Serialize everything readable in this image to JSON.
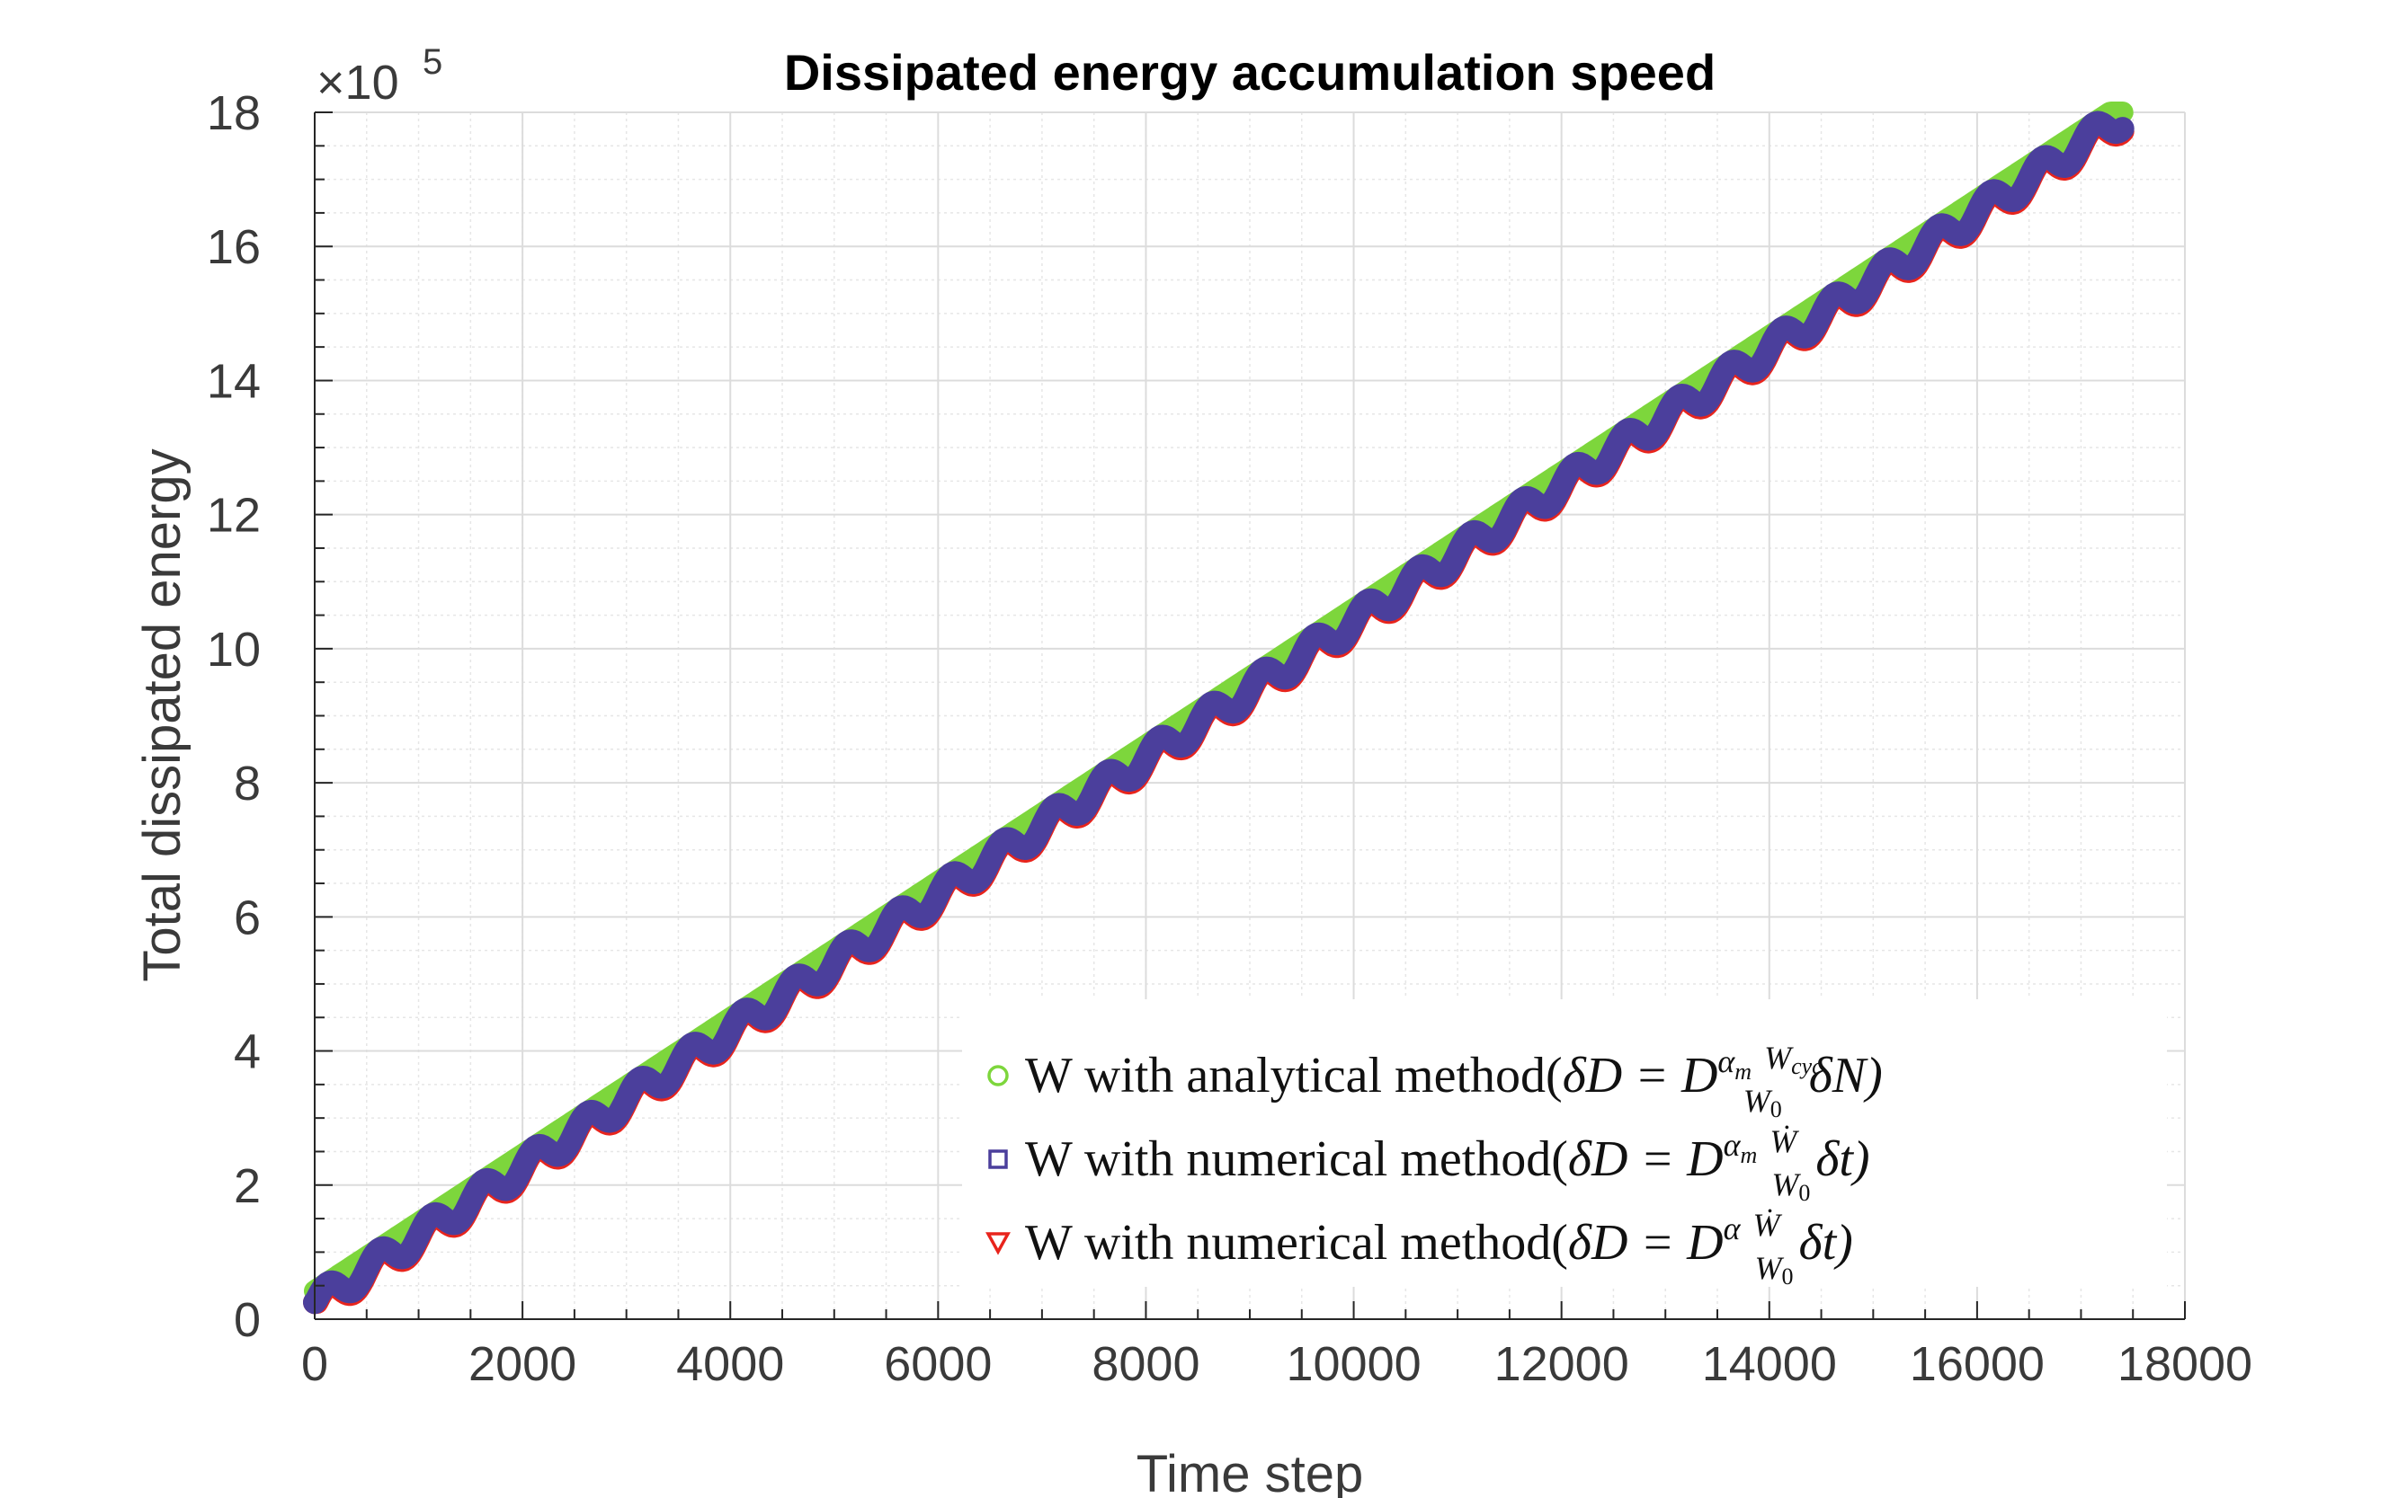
{
  "chart_data": {
    "type": "line",
    "title": "Dissipated energy accumulation speed",
    "xlabel": "Time step",
    "ylabel": "Total dissipated energy",
    "y_exponent_label": "×10",
    "y_exponent_power": "5",
    "xlim": [
      0,
      18000
    ],
    "ylim": [
      0,
      18
    ],
    "x_ticks": [
      "0",
      "2000",
      "4000",
      "6000",
      "8000",
      "10000",
      "12000",
      "14000",
      "16000",
      "18000"
    ],
    "y_ticks": [
      "0",
      "2",
      "4",
      "6",
      "8",
      "10",
      "12",
      "14",
      "16",
      "18"
    ],
    "grid": true,
    "minor_grid": true,
    "legend_position": "bottom-right",
    "x_max_data": 17400,
    "y_start": 0.3,
    "y_end": 18.0,
    "oscillation_period": 500,
    "oscillation_amplitude": 0.18,
    "series": [
      {
        "name": "W with analytical method(",
        "marker": "circle",
        "color": "#7dd63c",
        "smooth": true,
        "offset": 0.12
      },
      {
        "name": "W with numerical method(",
        "marker": "square",
        "color": "#4b3f9c",
        "smooth": false,
        "offset": 0.0
      },
      {
        "name": "W with numerical method(",
        "marker": "triangle-down",
        "color": "#e8241c",
        "smooth": false,
        "offset": -0.04
      }
    ],
    "legend_equations": [
      {
        "lhs": "δD = D",
        "sup": "α",
        "sup_sub": "m",
        "num": "W",
        "num_sub": "cyc",
        "den": "W",
        "den_sub": "0",
        "tail": "δN)"
      },
      {
        "lhs": "δD = D",
        "sup": "α",
        "sup_sub": "m",
        "num": "Ẇ",
        "num_sub": "",
        "den": "W",
        "den_sub": "0",
        "tail": "δt)"
      },
      {
        "lhs": "δD = D",
        "sup": "α",
        "sup_sub": "",
        "num": "Ẇ",
        "num_sub": "",
        "den": "W",
        "den_sub": "0",
        "tail": "δt)"
      }
    ]
  }
}
